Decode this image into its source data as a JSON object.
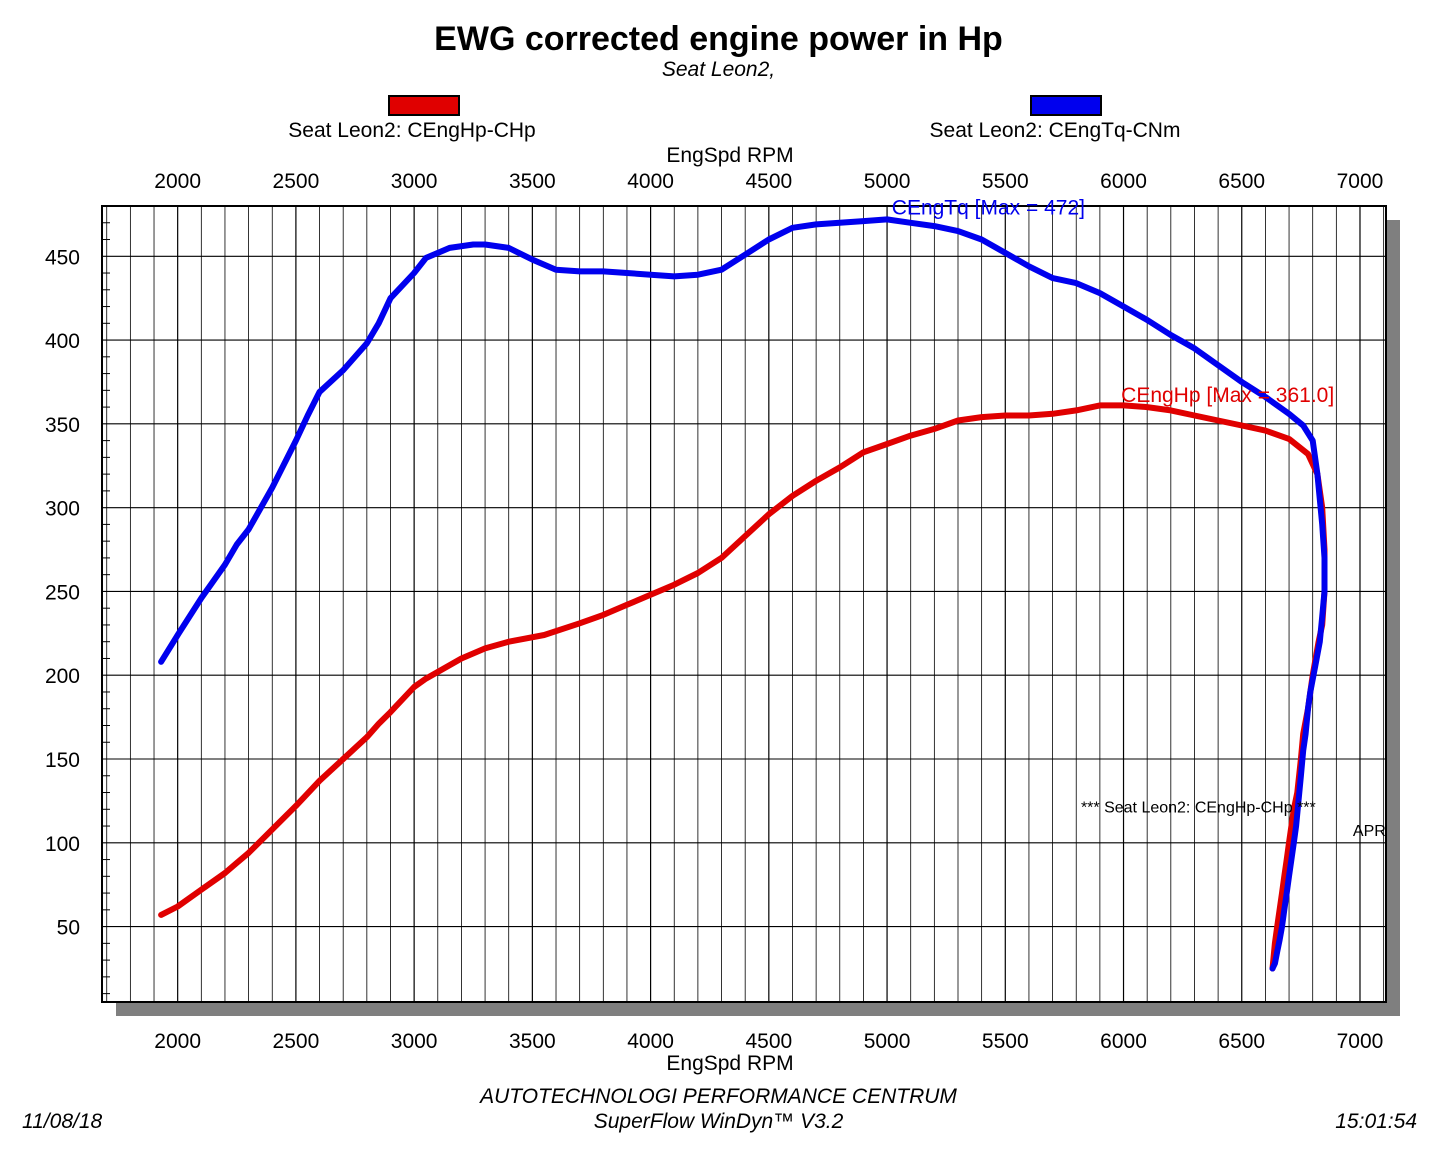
{
  "title": "EWG corrected engine power in Hp",
  "subtitle": "Seat Leon2,",
  "legend": [
    {
      "label": "Seat Leon2: CEngHp-CHp",
      "color": "#e00000"
    },
    {
      "label": "Seat Leon2: CEngTq-CNm",
      "color": "#0000ee"
    }
  ],
  "footer": {
    "date": "11/08/18",
    "time": "15:01:54",
    "line1": "AUTOTECHNOLOGI PERFORMANCE CENTRUM",
    "line2": "SuperFlow WinDyn™ V3.2"
  },
  "chart_data": {
    "type": "line",
    "title": "EWG corrected engine power in Hp",
    "subtitle": "Seat Leon2,",
    "xlabel": "EngSpd RPM",
    "ylabel": "",
    "xlim": [
      1680,
      7110
    ],
    "ylim": [
      5,
      480
    ],
    "x_ticks": [
      2000,
      2500,
      3000,
      3500,
      4000,
      4500,
      5000,
      5500,
      6000,
      6500,
      7000
    ],
    "y_ticks": [
      50,
      100,
      150,
      200,
      250,
      300,
      350,
      400,
      450
    ],
    "grid": true,
    "annotations": [
      {
        "text": "CEngTq [Max = 472]",
        "x": 5020,
        "y": 475,
        "color": "#0000ee"
      },
      {
        "text": "CEngHp [Max = 361.0]",
        "x": 5990,
        "y": 363,
        "color": "#e00000"
      },
      {
        "text": "*** Seat Leon2: CEngHp-CHp     ***",
        "x": 5820,
        "y": 118,
        "color": "#000000"
      },
      {
        "text": "APR",
        "x": 6970,
        "y": 104,
        "color": "#000000"
      }
    ],
    "series": [
      {
        "name": "Seat Leon2: CEngHp-CHp",
        "color": "#e00000",
        "x": [
          1930,
          2000,
          2100,
          2200,
          2250,
          2300,
          2400,
          2500,
          2600,
          2700,
          2800,
          2850,
          2900,
          3000,
          3050,
          3200,
          3300,
          3400,
          3550,
          3700,
          3800,
          3900,
          4000,
          4100,
          4200,
          4300,
          4400,
          4500,
          4600,
          4700,
          4800,
          4900,
          5000,
          5100,
          5200,
          5300,
          5400,
          5500,
          5600,
          5700,
          5800,
          5900,
          6000,
          6100,
          6200,
          6300,
          6400,
          6500,
          6600,
          6700,
          6780,
          6820,
          6840,
          6850,
          6850,
          6840,
          6825,
          6800,
          6790,
          6780,
          6760,
          6750,
          6735,
          6720,
          6710,
          6700,
          6690,
          6680,
          6670,
          6660,
          6650,
          6640,
          6630
        ],
        "y": [
          57,
          62,
          72,
          82,
          88,
          94,
          108,
          122,
          137,
          150,
          163,
          171,
          178,
          193,
          198,
          210,
          216,
          220,
          224,
          231,
          236,
          242,
          248,
          254,
          261,
          270,
          283,
          296,
          307,
          316,
          324,
          333,
          338,
          343,
          347,
          352,
          354,
          355,
          355,
          356,
          358,
          361,
          361,
          360,
          358,
          355,
          352,
          349,
          346,
          341,
          332,
          320,
          300,
          275,
          250,
          230,
          220,
          200,
          190,
          180,
          165,
          150,
          130,
          120,
          110,
          100,
          90,
          80,
          70,
          60,
          50,
          40,
          25
        ]
      },
      {
        "name": "Seat Leon2: CEngTq-CNm",
        "color": "#0000ee",
        "x": [
          1930,
          2000,
          2100,
          2200,
          2250,
          2300,
          2400,
          2500,
          2550,
          2600,
          2700,
          2800,
          2850,
          2900,
          3000,
          3050,
          3150,
          3250,
          3300,
          3400,
          3500,
          3600,
          3700,
          3800,
          3900,
          4000,
          4100,
          4200,
          4300,
          4400,
          4500,
          4600,
          4700,
          4800,
          4900,
          5000,
          5100,
          5200,
          5300,
          5400,
          5500,
          5600,
          5700,
          5800,
          5900,
          6000,
          6100,
          6200,
          6300,
          6400,
          6500,
          6600,
          6700,
          6760,
          6800,
          6820,
          6840,
          6850,
          6850,
          6840,
          6830,
          6810,
          6790,
          6780,
          6770,
          6760,
          6750,
          6740,
          6730,
          6720,
          6710,
          6700,
          6690,
          6680,
          6670,
          6660,
          6650,
          6640,
          6630
        ],
        "y": [
          208,
          224,
          246,
          266,
          278,
          287,
          312,
          340,
          355,
          369,
          382,
          398,
          410,
          425,
          440,
          449,
          455,
          457,
          457,
          455,
          448,
          442,
          441,
          441,
          440,
          439,
          438,
          439,
          442,
          451,
          460,
          467,
          469,
          470,
          471,
          472,
          470,
          468,
          465,
          460,
          452,
          444,
          437,
          434,
          428,
          420,
          412,
          403,
          395,
          385,
          375,
          366,
          356,
          349,
          340,
          320,
          290,
          270,
          250,
          235,
          220,
          205,
          190,
          180,
          165,
          155,
          140,
          125,
          110,
          100,
          90,
          80,
          70,
          60,
          50,
          42,
          35,
          28,
          25
        ]
      }
    ]
  }
}
